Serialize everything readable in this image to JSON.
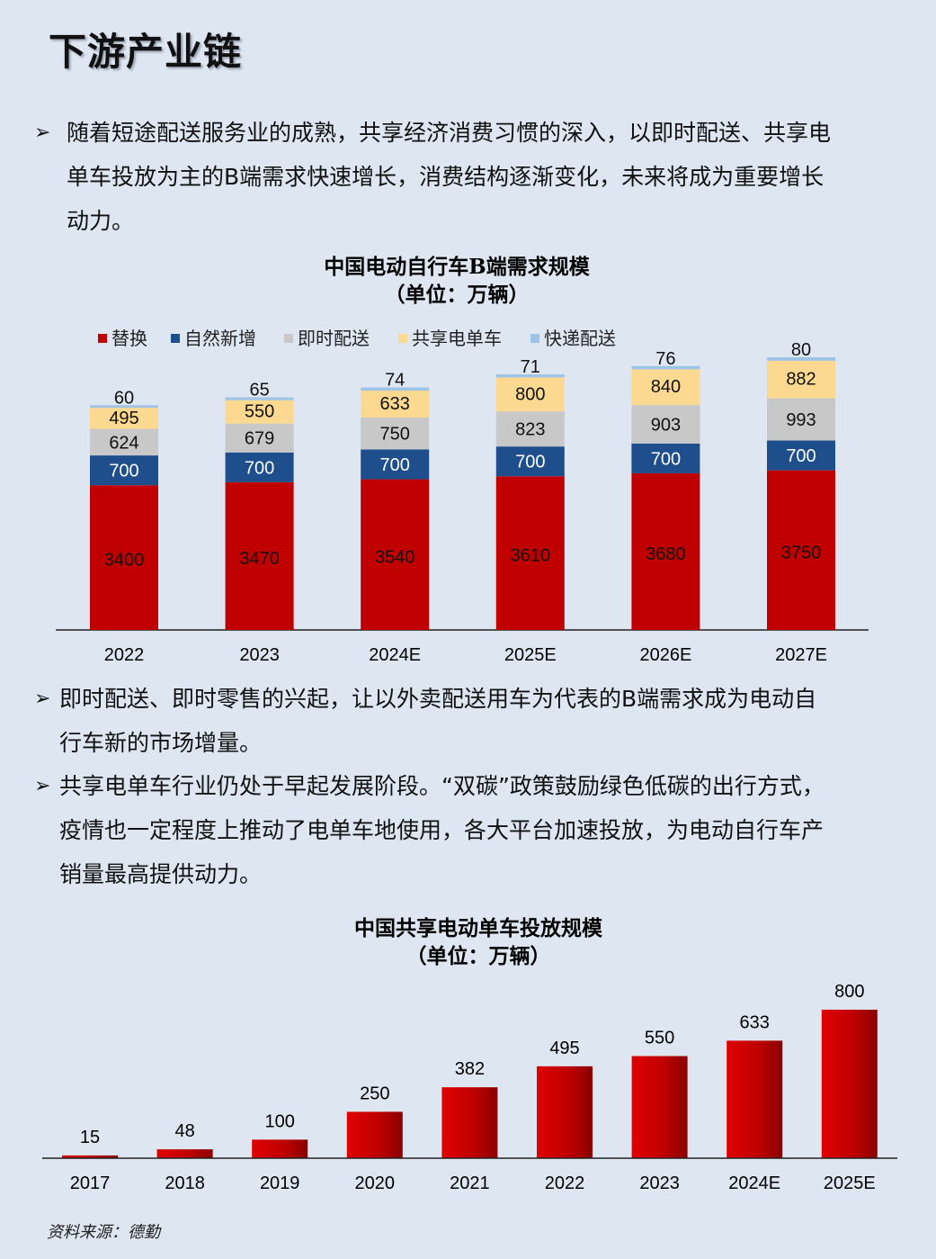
{
  "page": {
    "title": "下游产业链",
    "source": "资料来源：德勤"
  },
  "bullets": [
    {
      "icon": "arrow-bullet-icon",
      "text": "随着短途配送服务业的成熟，共享经济消费习惯的深入，以即时配送、共享电单车投放为主的B端需求快速增长，消费结构逐渐变化，未来将成为重要增长动力。"
    },
    {
      "icon": "arrow-bullet-icon",
      "text": "即时配送、即时零售的兴起，让以外卖配送用车为代表的B端需求成为电动自行车新的市场增量。"
    },
    {
      "icon": "arrow-bullet-icon",
      "text": "共享电单车行业仍处于早起发展阶段。“双碳”政策鼓励绿色低碳的出行方式，疫情也一定程度上推动了电单车地使用，各大平台加速投放，为电动自行车产销量最高提供动力。"
    }
  ],
  "bullet_lines": [
    [
      "随着短途配送服务业的成熟，共享经济消费习惯的深入，以即时配送、共享电",
      "单车投放为主的B端需求快速增长，消费结构逐渐变化，未来将成为重要增长",
      "动力。"
    ],
    [
      "即时配送、即时零售的兴起，让以外卖配送用车为代表的B端需求成为电动自",
      "行车新的市场增量。"
    ],
    [
      "共享电单车行业仍处于早起发展阶段。“双碳”政策鼓励绿色低碳的出行方式，",
      "疫情也一定程度上推动了电单车地使用，各大平台加速投放，为电动自行车产",
      "销量最高提供动力。"
    ]
  ],
  "chart_data": [
    {
      "type": "bar",
      "stacked": true,
      "title": "中国电动自行车B端需求规模",
      "subtitle": "（单位：万辆）",
      "categories": [
        "2022",
        "2023",
        "2024E",
        "2025E",
        "2026E",
        "2027E"
      ],
      "series": [
        {
          "name": "替换",
          "color": "#c00000",
          "values": [
            3400,
            3470,
            3540,
            3610,
            3680,
            3750
          ]
        },
        {
          "name": "自然新增",
          "color": "#1f4e8c",
          "values": [
            700,
            700,
            700,
            700,
            700,
            700
          ]
        },
        {
          "name": "即时配送",
          "color": "#c8c8c8",
          "values": [
            624,
            679,
            750,
            823,
            903,
            993
          ]
        },
        {
          "name": "共享电单车",
          "color": "#fcd990",
          "values": [
            495,
            550,
            633,
            800,
            840,
            882
          ]
        },
        {
          "name": "快递配送",
          "color": "#9dc3e6",
          "values": [
            60,
            65,
            74,
            71,
            76,
            80
          ]
        }
      ],
      "legend": "top-left",
      "grid": false
    },
    {
      "type": "bar",
      "title": "中国共享电动单车投放规模",
      "subtitle": "（单位：万辆）",
      "categories": [
        "2017",
        "2018",
        "2019",
        "2020",
        "2021",
        "2022",
        "2023",
        "2024E",
        "2025E"
      ],
      "values": [
        15,
        48,
        100,
        250,
        382,
        495,
        550,
        633,
        800
      ],
      "color": "#c00000",
      "grid": false
    }
  ]
}
